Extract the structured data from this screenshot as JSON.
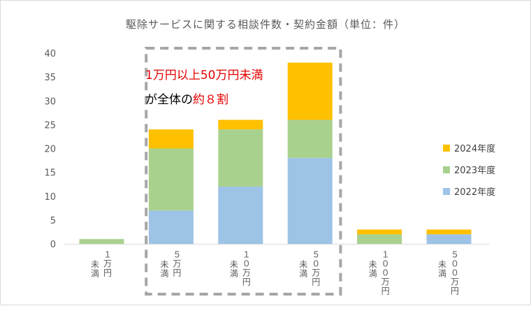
{
  "chart_data": {
    "type": "bar",
    "stacked": true,
    "title": "駆除サービスに関する相談件数・契約金額（単位：件）",
    "categories": [
      {
        "line1": "未満",
        "line2": "１万円"
      },
      {
        "line1": "未満",
        "line2": "５万円"
      },
      {
        "line1": "未満",
        "line2": "１０万円"
      },
      {
        "line1": "未満",
        "line2": "５０万円"
      },
      {
        "line1": "未満",
        "line2": "１００万円"
      },
      {
        "line1": "未満",
        "line2": "５００万円"
      }
    ],
    "series": [
      {
        "name": "2022年度",
        "color": "#9dc3e6",
        "values": [
          0,
          7,
          12,
          18,
          0,
          2
        ]
      },
      {
        "name": "2023年度",
        "color": "#a9d18e",
        "values": [
          1,
          13,
          12,
          8,
          2,
          0
        ]
      },
      {
        "name": "2024年度",
        "color": "#ffc000",
        "values": [
          0,
          4,
          2,
          12,
          1,
          1
        ]
      }
    ],
    "ylim": [
      0,
      40
    ],
    "yticks": [
      "0",
      "5",
      "10",
      "15",
      "20",
      "25",
      "30",
      "35",
      "40"
    ],
    "legend_position": "right",
    "grid": false,
    "annotation": {
      "line1": "1万円以上50万円未満",
      "line2_a": "が全体の",
      "line2_b": "約８割"
    }
  }
}
